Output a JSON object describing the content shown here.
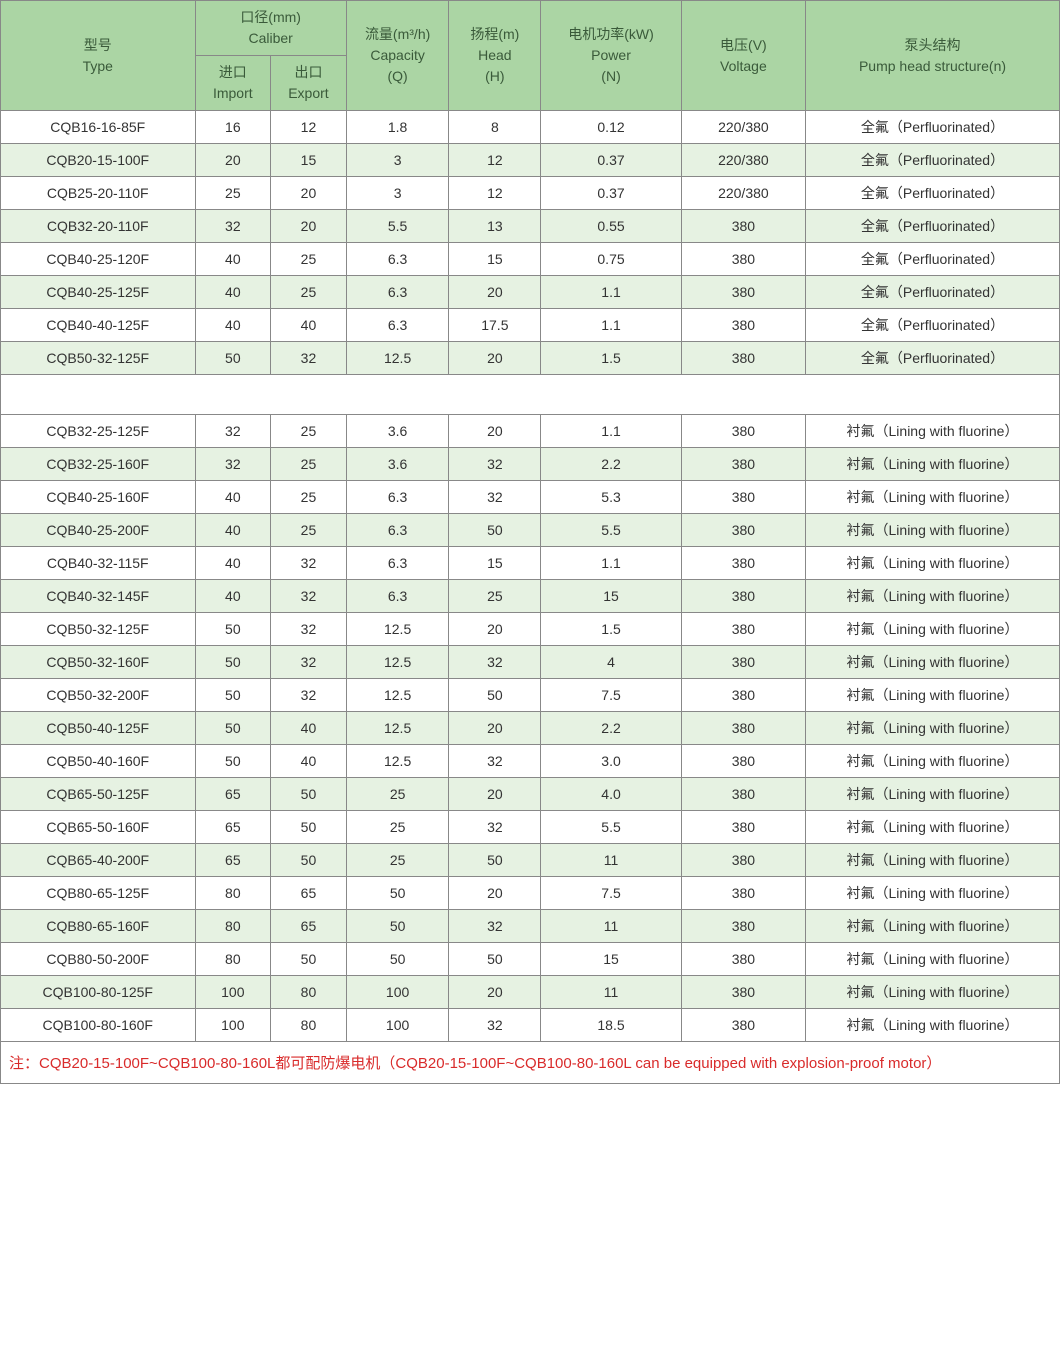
{
  "colors": {
    "header_bg": "#abd5a4",
    "header_text": "#3a5a3a",
    "row_even_bg": "#e6f2e2",
    "row_odd_bg": "#ffffff",
    "border": "#888888",
    "footnote": "#d92b2b"
  },
  "columns": {
    "type": {
      "cn": "型号",
      "en": "Type"
    },
    "caliber": {
      "cn": "口径(mm)",
      "en": "Caliber"
    },
    "import": {
      "cn": "进口",
      "en": "Import"
    },
    "export": {
      "cn": "出口",
      "en": "Export"
    },
    "capacity": {
      "cn": "流量(m³/h)",
      "en": "Capacity",
      "sym": "(Q)"
    },
    "head": {
      "cn": "扬程(m)",
      "en": "Head",
      "sym": "(H)"
    },
    "power": {
      "cn": "电机功率(kW)",
      "en": "Power",
      "sym": "(N)"
    },
    "voltage": {
      "cn": "电压(V)",
      "en": "Voltage"
    },
    "structure": {
      "cn": "泵头结构",
      "en": "Pump head structure(n)"
    }
  },
  "structures": {
    "pf": "全氟（Perfluorinated）",
    "lf": "衬氟（Lining with fluorine）"
  },
  "groups": [
    {
      "rows": [
        {
          "type": "CQB16-16-85F",
          "imp": "16",
          "exp": "12",
          "cap": "1.8",
          "head": "8",
          "pow": "0.12",
          "volt": "220/380",
          "struct": "pf"
        },
        {
          "type": "CQB20-15-100F",
          "imp": "20",
          "exp": "15",
          "cap": "3",
          "head": "12",
          "pow": "0.37",
          "volt": "220/380",
          "struct": "pf"
        },
        {
          "type": "CQB25-20-110F",
          "imp": "25",
          "exp": "20",
          "cap": "3",
          "head": "12",
          "pow": "0.37",
          "volt": "220/380",
          "struct": "pf"
        },
        {
          "type": "CQB32-20-110F",
          "imp": "32",
          "exp": "20",
          "cap": "5.5",
          "head": "13",
          "pow": "0.55",
          "volt": "380",
          "struct": "pf"
        },
        {
          "type": "CQB40-25-120F",
          "imp": "40",
          "exp": "25",
          "cap": "6.3",
          "head": "15",
          "pow": "0.75",
          "volt": "380",
          "struct": "pf"
        },
        {
          "type": "CQB40-25-125F",
          "imp": "40",
          "exp": "25",
          "cap": "6.3",
          "head": "20",
          "pow": "1.1",
          "volt": "380",
          "struct": "pf"
        },
        {
          "type": "CQB40-40-125F",
          "imp": "40",
          "exp": "40",
          "cap": "6.3",
          "head": "17.5",
          "pow": "1.1",
          "volt": "380",
          "struct": "pf"
        },
        {
          "type": "CQB50-32-125F",
          "imp": "50",
          "exp": "32",
          "cap": "12.5",
          "head": "20",
          "pow": "1.5",
          "volt": "380",
          "struct": "pf"
        }
      ]
    },
    {
      "rows": [
        {
          "type": "CQB32-25-125F",
          "imp": "32",
          "exp": "25",
          "cap": "3.6",
          "head": "20",
          "pow": "1.1",
          "volt": "380",
          "struct": "lf"
        },
        {
          "type": "CQB32-25-160F",
          "imp": "32",
          "exp": "25",
          "cap": "3.6",
          "head": "32",
          "pow": "2.2",
          "volt": "380",
          "struct": "lf"
        },
        {
          "type": "CQB40-25-160F",
          "imp": "40",
          "exp": "25",
          "cap": "6.3",
          "head": "32",
          "pow": "5.3",
          "volt": "380",
          "struct": "lf"
        },
        {
          "type": "CQB40-25-200F",
          "imp": "40",
          "exp": "25",
          "cap": "6.3",
          "head": "50",
          "pow": "5.5",
          "volt": "380",
          "struct": "lf"
        },
        {
          "type": "CQB40-32-115F",
          "imp": "40",
          "exp": "32",
          "cap": "6.3",
          "head": "15",
          "pow": "1.1",
          "volt": "380",
          "struct": "lf"
        },
        {
          "type": "CQB40-32-145F",
          "imp": "40",
          "exp": "32",
          "cap": "6.3",
          "head": "25",
          "pow": "15",
          "volt": "380",
          "struct": "lf"
        },
        {
          "type": "CQB50-32-125F",
          "imp": "50",
          "exp": "32",
          "cap": "12.5",
          "head": "20",
          "pow": "1.5",
          "volt": "380",
          "struct": "lf"
        },
        {
          "type": "CQB50-32-160F",
          "imp": "50",
          "exp": "32",
          "cap": "12.5",
          "head": "32",
          "pow": "4",
          "volt": "380",
          "struct": "lf"
        },
        {
          "type": "CQB50-32-200F",
          "imp": "50",
          "exp": "32",
          "cap": "12.5",
          "head": "50",
          "pow": "7.5",
          "volt": "380",
          "struct": "lf"
        },
        {
          "type": "CQB50-40-125F",
          "imp": "50",
          "exp": "40",
          "cap": "12.5",
          "head": "20",
          "pow": "2.2",
          "volt": "380",
          "struct": "lf"
        },
        {
          "type": "CQB50-40-160F",
          "imp": "50",
          "exp": "40",
          "cap": "12.5",
          "head": "32",
          "pow": "3.0",
          "volt": "380",
          "struct": "lf"
        },
        {
          "type": "CQB65-50-125F",
          "imp": "65",
          "exp": "50",
          "cap": "25",
          "head": "20",
          "pow": "4.0",
          "volt": "380",
          "struct": "lf"
        },
        {
          "type": "CQB65-50-160F",
          "imp": "65",
          "exp": "50",
          "cap": "25",
          "head": "32",
          "pow": "5.5",
          "volt": "380",
          "struct": "lf"
        },
        {
          "type": "CQB65-40-200F",
          "imp": "65",
          "exp": "50",
          "cap": "25",
          "head": "50",
          "pow": "11",
          "volt": "380",
          "struct": "lf"
        },
        {
          "type": "CQB80-65-125F",
          "imp": "80",
          "exp": "65",
          "cap": "50",
          "head": "20",
          "pow": "7.5",
          "volt": "380",
          "struct": "lf"
        },
        {
          "type": "CQB80-65-160F",
          "imp": "80",
          "exp": "65",
          "cap": "50",
          "head": "32",
          "pow": "11",
          "volt": "380",
          "struct": "lf"
        },
        {
          "type": "CQB80-50-200F",
          "imp": "80",
          "exp": "50",
          "cap": "50",
          "head": "50",
          "pow": "15",
          "volt": "380",
          "struct": "lf"
        },
        {
          "type": "CQB100-80-125F",
          "imp": "100",
          "exp": "80",
          "cap": "100",
          "head": "20",
          "pow": "11",
          "volt": "380",
          "struct": "lf"
        },
        {
          "type": "CQB100-80-160F",
          "imp": "100",
          "exp": "80",
          "cap": "100",
          "head": "32",
          "pow": "18.5",
          "volt": "380",
          "struct": "lf"
        }
      ]
    }
  ],
  "footnote": "注：CQB20-15-100F~CQB100-80-160L都可配防爆电机（CQB20-15-100F~CQB100-80-160L can be equipped with explosion-proof motor）"
}
